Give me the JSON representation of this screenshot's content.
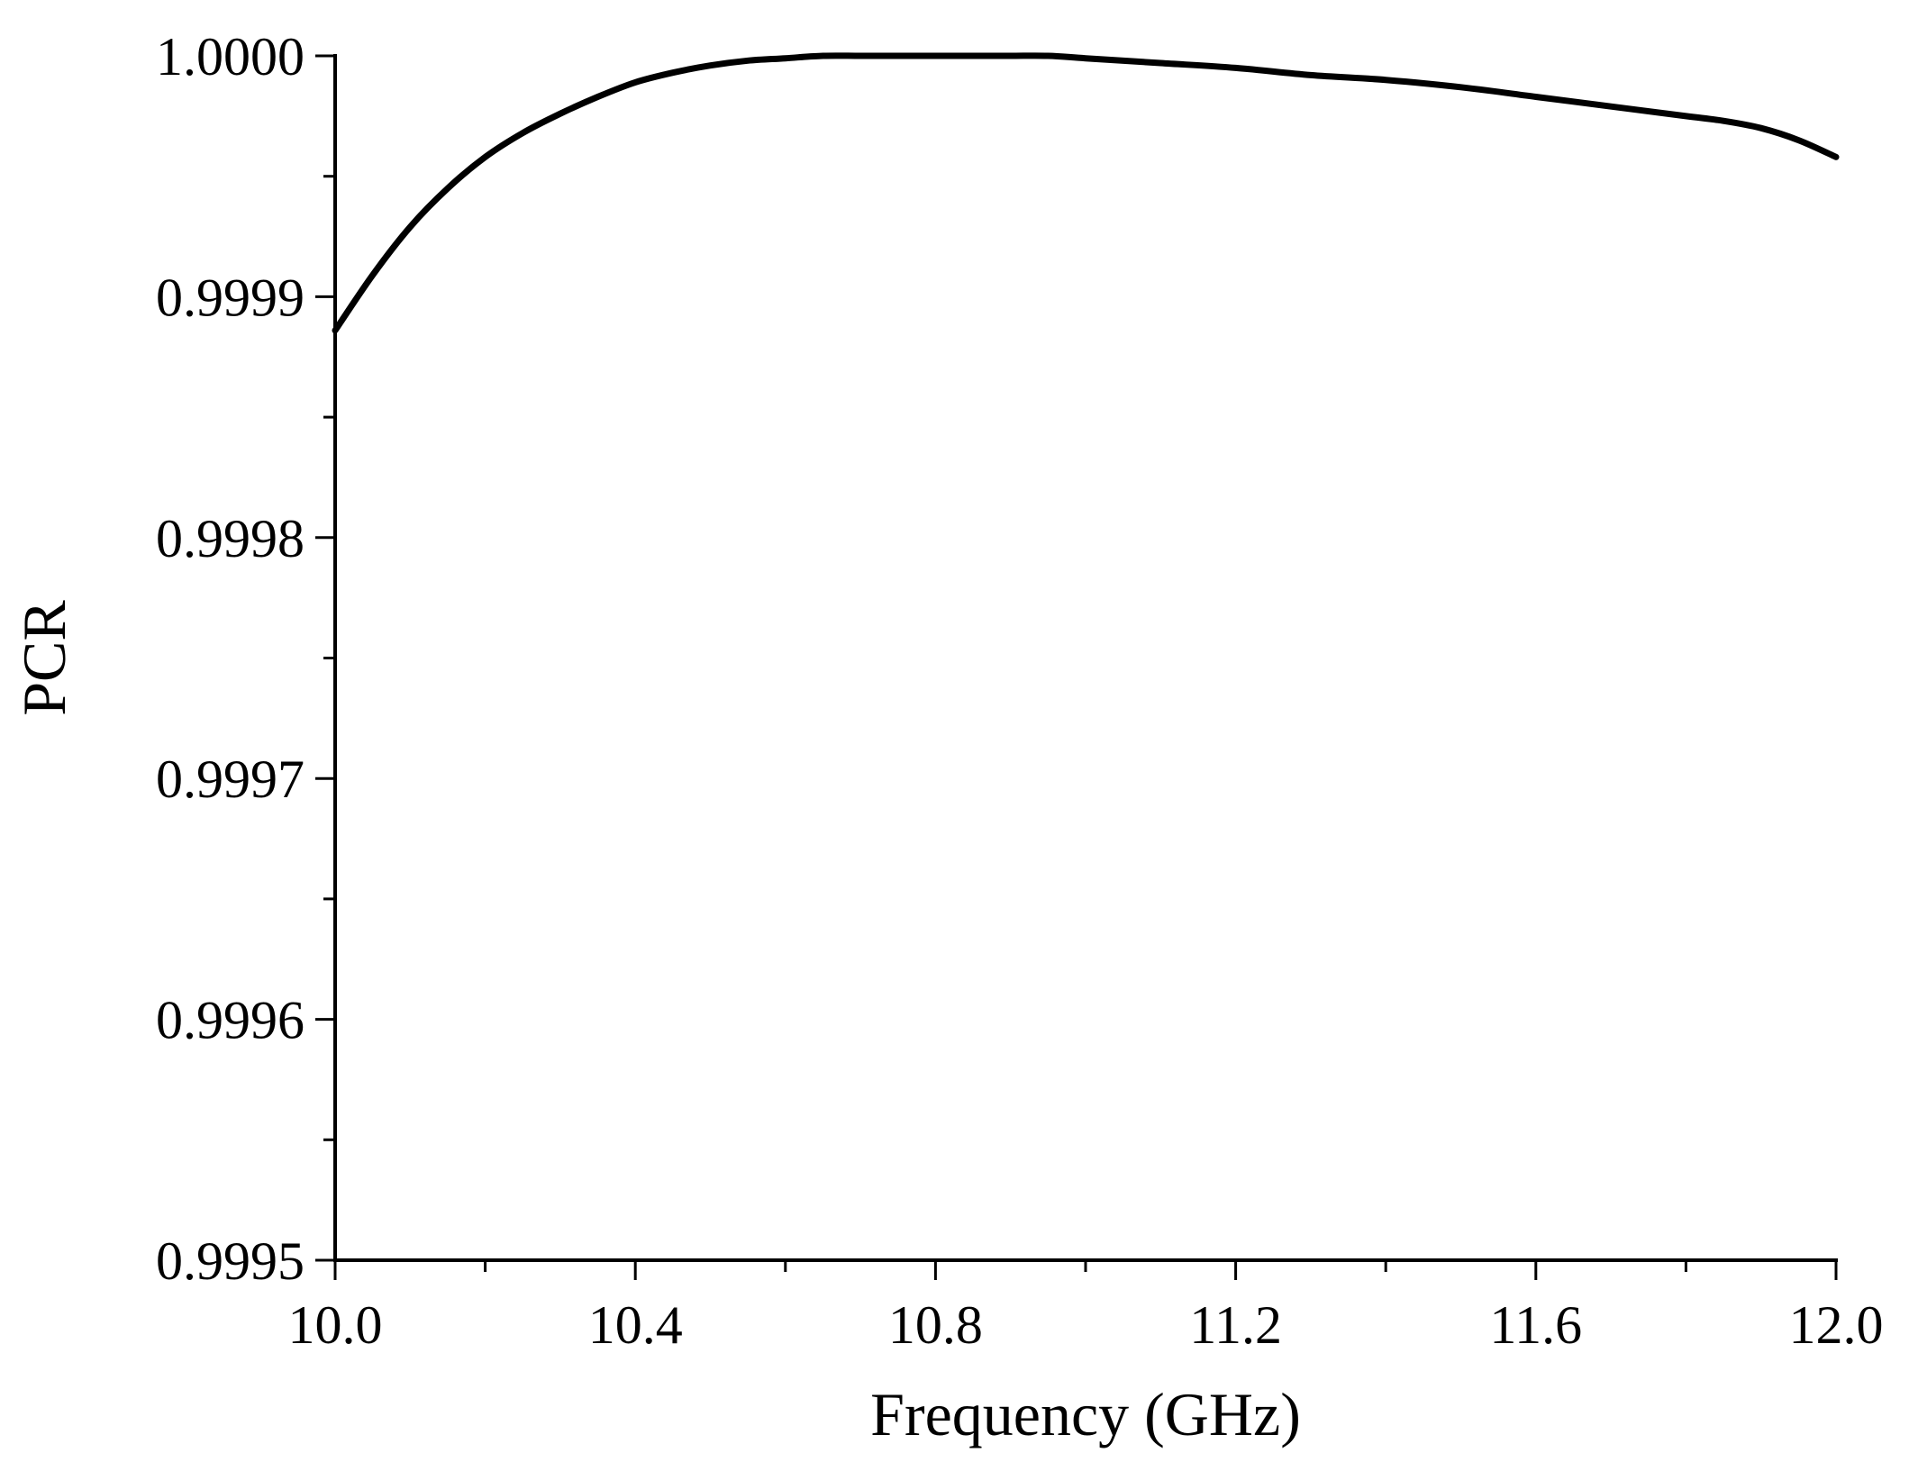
{
  "chart_data": {
    "type": "line",
    "title": "",
    "xlabel": "Frequency (GHz)",
    "ylabel": "PCR",
    "xlim": [
      10.0,
      12.0
    ],
    "ylim": [
      0.9995,
      1.0
    ],
    "grid": false,
    "x_ticks": [
      10.0,
      10.4,
      10.8,
      11.2,
      11.6,
      12.0
    ],
    "x_tick_labels": [
      "10.0",
      "10.4",
      "10.8",
      "11.2",
      "11.6",
      "12.0"
    ],
    "x_minor_ticks": [
      10.2,
      10.6,
      11.0,
      11.4,
      11.8
    ],
    "y_ticks": [
      0.9995,
      0.9996,
      0.9997,
      0.9998,
      0.9999,
      1.0
    ],
    "y_tick_labels": [
      "0.9995",
      "0.9996",
      "0.9997",
      "0.9998",
      "0.9999",
      "1.0000"
    ],
    "y_minor_ticks": [
      0.99955,
      0.99965,
      0.99975,
      0.99985,
      0.99995
    ],
    "line_color": "#000000",
    "series": [
      {
        "x": [
          10.0,
          10.05,
          10.1,
          10.15,
          10.2,
          10.25,
          10.3,
          10.35,
          10.4,
          10.45,
          10.5,
          10.55,
          10.6,
          10.65,
          10.7,
          10.75,
          10.8,
          10.85,
          10.9,
          10.95,
          11.0,
          11.1,
          11.2,
          11.3,
          11.4,
          11.5,
          11.6,
          11.7,
          11.8,
          11.85,
          11.9,
          11.95,
          12.0
        ],
        "y": [
          0.999886,
          0.999909,
          0.999929,
          0.999945,
          0.999958,
          0.999968,
          0.999976,
          0.999983,
          0.999989,
          0.999993,
          0.999996,
          0.999998,
          0.999999,
          1.0,
          1.0,
          1.0,
          1.0,
          1.0,
          1.0,
          1.0,
          0.999999,
          0.999997,
          0.999995,
          0.999992,
          0.99999,
          0.999987,
          0.999983,
          0.999979,
          0.999975,
          0.999973,
          0.99997,
          0.999965,
          0.999958
        ]
      }
    ]
  }
}
